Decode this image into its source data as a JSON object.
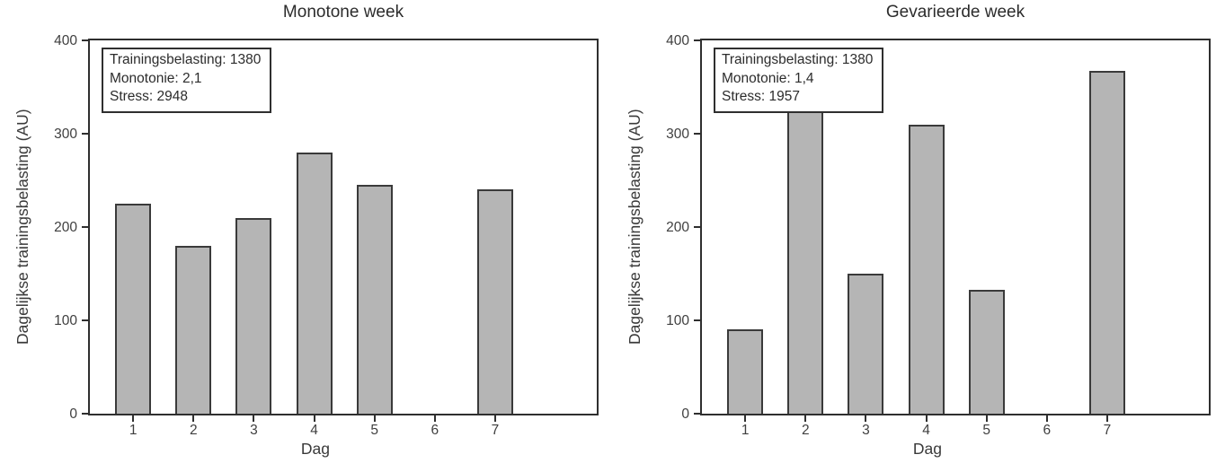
{
  "figure": {
    "background": "#ffffff"
  },
  "chart_data": [
    {
      "type": "bar",
      "title": "Monotone week",
      "categories": [
        "1",
        "2",
        "3",
        "4",
        "5",
        "6",
        "7"
      ],
      "values": [
        225,
        180,
        210,
        280,
        245,
        0,
        240
      ],
      "xlabel": "Dag",
      "ylabel": "Dagelijkse trainingsbelasting (AU)",
      "ylim": [
        0,
        400
      ],
      "yticks": [
        0,
        100,
        200,
        300,
        400
      ],
      "grid": false,
      "bar_fill": "#b5b5b5",
      "bar_border": "#3a3a3a",
      "annotation": [
        "Trainingsbelasting: 1380",
        "Monotonie: 2,1",
        "Stress: 2948"
      ]
    },
    {
      "type": "bar",
      "title": "Gevarieerde week",
      "categories": [
        "1",
        "2",
        "3",
        "4",
        "5",
        "6",
        "7"
      ],
      "values": [
        90,
        330,
        150,
        310,
        133,
        0,
        367
      ],
      "xlabel": "Dag",
      "ylabel": "Dagelijkse trainingsbelasting (AU)",
      "ylim": [
        0,
        400
      ],
      "yticks": [
        0,
        100,
        200,
        300,
        400
      ],
      "grid": false,
      "bar_fill": "#b5b5b5",
      "bar_border": "#3a3a3a",
      "annotation": [
        "Trainingsbelasting: 1380",
        "Monotonie: 1,4",
        "Stress: 1957"
      ]
    }
  ]
}
